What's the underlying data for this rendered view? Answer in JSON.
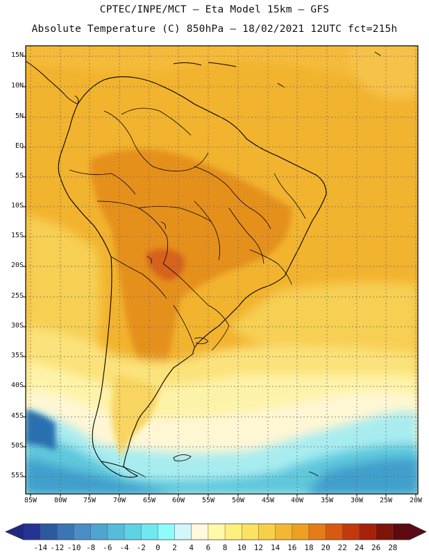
{
  "title_line1": "CPTEC/INPE/MCT –  Eta Model 15km – GFS",
  "title_line2": "Absolute Temperature (C) 850hPa – 18/02/2021 12UTC fct=215h",
  "lat_labels": [
    "15N",
    "10N",
    "5N",
    "EQ",
    "5S",
    "10S",
    "15S",
    "20S",
    "25S",
    "30S",
    "35S",
    "40S",
    "45S",
    "50S",
    "55S"
  ],
  "lon_labels": [
    "85W",
    "80W",
    "75W",
    "70W",
    "65W",
    "60W",
    "55W",
    "50W",
    "45W",
    "40W",
    "35W",
    "30W",
    "25W",
    "20W"
  ],
  "colorbar": {
    "labels": [
      "-14",
      "-12",
      "-10",
      "-8",
      "-6",
      "-4",
      "-2",
      "0",
      "2",
      "4",
      "6",
      "8",
      "10",
      "12",
      "14",
      "16",
      "18",
      "20",
      "22",
      "24",
      "26",
      "28"
    ],
    "colors": [
      "#253494",
      "#2c5aa0",
      "#3a75b5",
      "#4a8ec6",
      "#4fa5d2",
      "#55bcdc",
      "#5dd3e6",
      "#6fe8f0",
      "#8ffbfb",
      "#d2f6fa",
      "#fff8dc",
      "#fffaa8",
      "#fdf07a",
      "#fbe260",
      "#f8d048",
      "#f4b730",
      "#eea020",
      "#e57c18",
      "#d85a10",
      "#c4380c",
      "#a8200a",
      "#7e1308",
      "#5c0a10"
    ]
  }
}
